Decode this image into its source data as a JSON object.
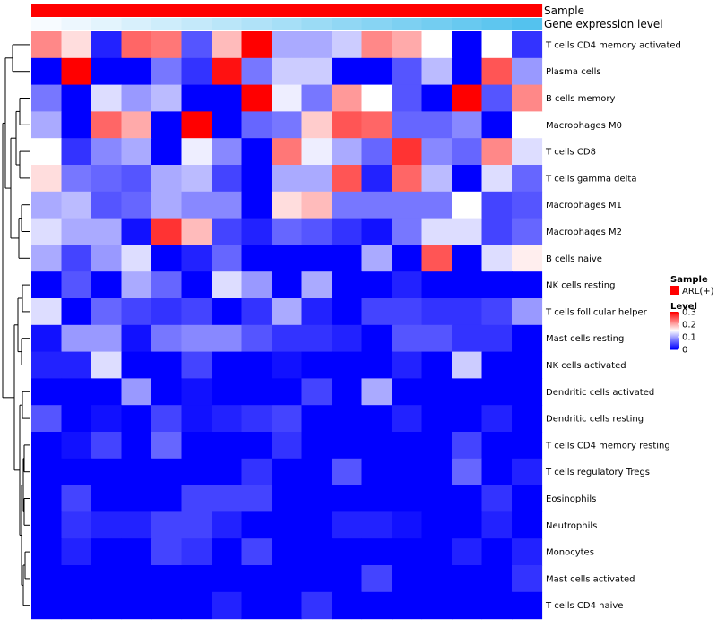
{
  "chart_data": {
    "type": "heatmap",
    "title": "",
    "annotations": [
      {
        "name": "Sample",
        "values": "single-category",
        "color": "#ff0000"
      },
      {
        "name": "Gene expression level",
        "values": "gradient-low-to-high",
        "low_color": "#f7fbff",
        "high_color": "#54c2ee"
      }
    ],
    "rows": [
      "T cells CD4 memory activated",
      "Plasma cells",
      "B cells memory",
      "Macrophages M0",
      "T cells CD8",
      "T cells gamma delta",
      "Macrophages M1",
      "Macrophages M2",
      "B cells naive",
      "NK cells resting",
      "T cells follicular helper",
      "Mast cells resting",
      "NK cells activated",
      "Dendritic cells activated",
      "Dendritic cells resting",
      "T cells CD4 memory resting",
      "T cells regulatory  Tregs",
      "Eosinophils",
      "Neutrophils",
      "Monocytes",
      "Mast cells activated",
      "T cells CD4 naive"
    ],
    "n_columns": 17,
    "values": [
      [
        0.22,
        0.17,
        0.02,
        0.24,
        0.23,
        0.05,
        0.19,
        0.3,
        0.1,
        0.1,
        0.12,
        0.22,
        0.2,
        0.15,
        0.0,
        0.15,
        0.03
      ],
      [
        0.0,
        0.3,
        0.0,
        0.0,
        0.07,
        0.03,
        0.29,
        0.07,
        0.12,
        0.12,
        0.0,
        0.0,
        0.05,
        0.11,
        0.0,
        0.25,
        0.09
      ],
      [
        0.07,
        0.0,
        0.13,
        0.09,
        0.11,
        0.0,
        0.0,
        0.3,
        0.14,
        0.07,
        0.21,
        0.15,
        0.05,
        0.0,
        0.3,
        0.05,
        0.22
      ],
      [
        0.1,
        0.0,
        0.24,
        0.2,
        0.0,
        0.3,
        0.0,
        0.06,
        0.07,
        0.18,
        0.25,
        0.24,
        0.06,
        0.06,
        0.08,
        0.0,
        0.15
      ],
      [
        0.15,
        0.03,
        0.08,
        0.1,
        0.0,
        0.14,
        0.08,
        0.0,
        0.23,
        0.14,
        0.1,
        0.06,
        0.27,
        0.08,
        0.06,
        0.22,
        0.13
      ],
      [
        0.17,
        0.07,
        0.06,
        0.05,
        0.1,
        0.11,
        0.04,
        0.0,
        0.1,
        0.1,
        0.25,
        0.02,
        0.24,
        0.11,
        0.0,
        0.13,
        0.06
      ],
      [
        0.1,
        0.11,
        0.05,
        0.06,
        0.1,
        0.08,
        0.08,
        0.0,
        0.17,
        0.19,
        0.07,
        0.07,
        0.07,
        0.07,
        0.15,
        0.04,
        0.05
      ],
      [
        0.13,
        0.1,
        0.1,
        0.01,
        0.27,
        0.19,
        0.04,
        0.02,
        0.06,
        0.05,
        0.03,
        0.01,
        0.07,
        0.13,
        0.13,
        0.04,
        0.06
      ],
      [
        0.1,
        0.04,
        0.09,
        0.13,
        0.0,
        0.02,
        0.06,
        0.0,
        0.0,
        0.0,
        0.0,
        0.1,
        0.0,
        0.25,
        0.0,
        0.13,
        0.16
      ],
      [
        0.0,
        0.05,
        0.0,
        0.1,
        0.06,
        0.0,
        0.13,
        0.09,
        0.0,
        0.1,
        0.0,
        0.0,
        0.02,
        0.0,
        0.0,
        0.0,
        0.0
      ],
      [
        0.13,
        0.0,
        0.06,
        0.04,
        0.03,
        0.04,
        0.0,
        0.03,
        0.1,
        0.02,
        0.0,
        0.04,
        0.04,
        0.03,
        0.03,
        0.04,
        0.09
      ],
      [
        0.01,
        0.09,
        0.09,
        0.01,
        0.07,
        0.08,
        0.08,
        0.05,
        0.03,
        0.03,
        0.02,
        0.0,
        0.05,
        0.05,
        0.03,
        0.03,
        0.0
      ],
      [
        0.02,
        0.02,
        0.13,
        0.0,
        0.0,
        0.04,
        0.0,
        0.0,
        0.01,
        0.0,
        0.0,
        0.0,
        0.02,
        0.0,
        0.12,
        0.0,
        0.0
      ],
      [
        0.0,
        0.0,
        0.0,
        0.09,
        0.0,
        0.01,
        0.0,
        0.0,
        0.0,
        0.04,
        0.0,
        0.1,
        0.0,
        0.0,
        0.0,
        0.0,
        0.0
      ],
      [
        0.05,
        0.0,
        0.01,
        0.0,
        0.04,
        0.01,
        0.02,
        0.03,
        0.04,
        0.0,
        0.0,
        0.0,
        0.02,
        0.0,
        0.0,
        0.02,
        0.0
      ],
      [
        0.0,
        0.01,
        0.04,
        0.0,
        0.06,
        0.0,
        0.0,
        0.0,
        0.03,
        0.0,
        0.0,
        0.0,
        0.0,
        0.0,
        0.04,
        0.0,
        0.0
      ],
      [
        0.0,
        0.0,
        0.0,
        0.0,
        0.0,
        0.0,
        0.0,
        0.03,
        0.0,
        0.0,
        0.05,
        0.0,
        0.0,
        0.0,
        0.06,
        0.0,
        0.02
      ],
      [
        0.0,
        0.04,
        0.0,
        0.0,
        0.0,
        0.04,
        0.04,
        0.04,
        0.0,
        0.0,
        0.0,
        0.0,
        0.0,
        0.0,
        0.0,
        0.03,
        0.0
      ],
      [
        0.0,
        0.03,
        0.02,
        0.02,
        0.04,
        0.04,
        0.02,
        0.0,
        0.0,
        0.0,
        0.02,
        0.02,
        0.01,
        0.0,
        0.0,
        0.02,
        0.0
      ],
      [
        0.0,
        0.02,
        0.0,
        0.0,
        0.04,
        0.03,
        0.0,
        0.04,
        0.0,
        0.0,
        0.0,
        0.0,
        0.0,
        0.0,
        0.02,
        0.0,
        0.02
      ],
      [
        0.0,
        0.0,
        0.0,
        0.0,
        0.0,
        0.0,
        0.0,
        0.0,
        0.0,
        0.0,
        0.0,
        0.04,
        0.0,
        0.0,
        0.0,
        0.0,
        0.03
      ],
      [
        0.0,
        0.0,
        0.0,
        0.0,
        0.0,
        0.0,
        0.02,
        0.0,
        0.0,
        0.03,
        0.0,
        0.0,
        0.0,
        0.0,
        0.0,
        0.0,
        0.0
      ]
    ],
    "color_scale": {
      "min": 0,
      "mid": 0.15,
      "max": 0.3,
      "colors": [
        "#0000ff",
        "#ffffff",
        "#ff0000"
      ]
    },
    "legend": {
      "sample": {
        "title": "Sample",
        "items": [
          {
            "label": "ARL(+)",
            "color": "#ff0000"
          }
        ]
      },
      "level": {
        "title": "Level",
        "ticks": [
          "0.3",
          "0.2",
          "0.1",
          "0"
        ],
        "tick_values": [
          0.3,
          0.2,
          0.1,
          0
        ]
      }
    },
    "row_dendrogram": true,
    "legend_position": "right"
  }
}
